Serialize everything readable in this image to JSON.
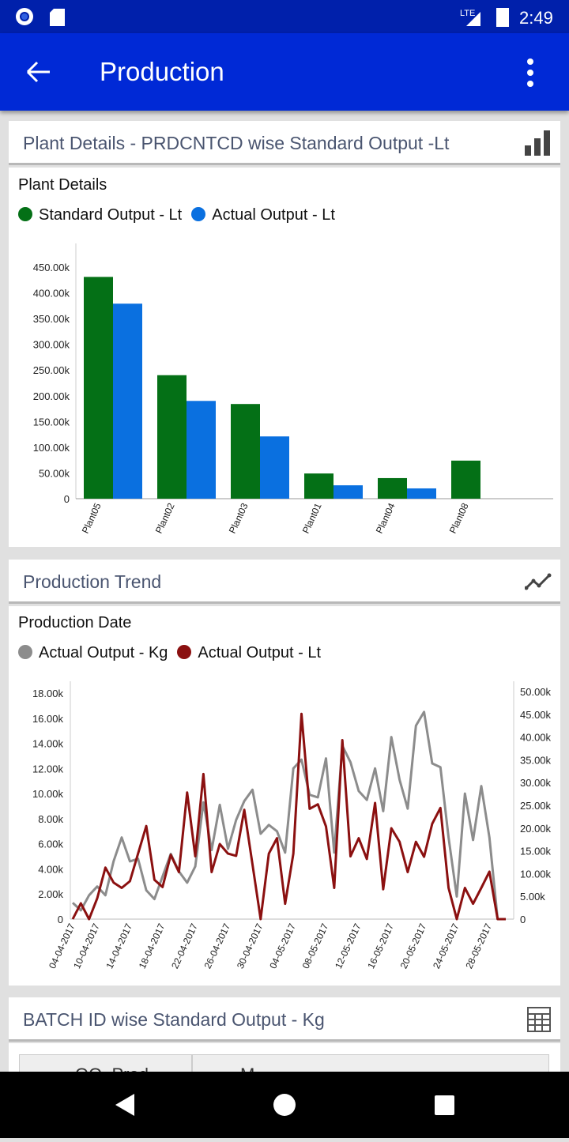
{
  "status_bar": {
    "time": "2:49",
    "network": "LTE"
  },
  "app_bar": {
    "title": "Production"
  },
  "cards": [
    {
      "header": "Plant Details - PRDCNTCD wise Standard Output -Lt",
      "icon": "bar-chart-icon"
    },
    {
      "header": "Production Trend",
      "icon": "line-chart-icon"
    },
    {
      "header": "BATCH ID wise Standard Output - Kg",
      "icon": "table-icon",
      "table_headers": [
        "OO_Prod",
        "M"
      ]
    }
  ],
  "chart_data": [
    {
      "type": "bar",
      "title": "Plant Details",
      "categories": [
        "Plant05",
        "Plant02",
        "Plant03",
        "Plant01",
        "Plant04",
        "Plant08"
      ],
      "series": [
        {
          "name": "Standard Output - Lt",
          "color": "#047016",
          "values": [
            431000,
            240000,
            184000,
            49000,
            40000,
            74000
          ]
        },
        {
          "name": "Actual Output - Lt",
          "color": "#0a70e0",
          "values": [
            379000,
            190000,
            121000,
            26000,
            20000,
            0
          ]
        }
      ],
      "ylim": [
        0,
        450000
      ],
      "y_ticks": [
        "0",
        "50.00k",
        "100.00k",
        "150.00k",
        "200.00k",
        "250.00k",
        "300.00k",
        "350.00k",
        "400.00k",
        "450.00k"
      ],
      "legend": "top-left",
      "grid": false
    },
    {
      "type": "line",
      "title": "Production Date",
      "x": [
        "04-04-2017",
        "06-04-2017",
        "08-04-2017",
        "10-04-2017",
        "11-04-2017",
        "12-04-2017",
        "13-04-2017",
        "14-04-2017",
        "15-04-2017",
        "16-04-2017",
        "17-04-2017",
        "18-04-2017",
        "19-04-2017",
        "20-04-2017",
        "21-04-2017",
        "22-04-2017",
        "23-04-2017",
        "24-04-2017",
        "25-04-2017",
        "26-04-2017",
        "27-04-2017",
        "28-04-2017",
        "29-04-2017",
        "30-04-2017",
        "01-05-2017",
        "02-05-2017",
        "03-05-2017",
        "04-05-2017",
        "05-05-2017",
        "06-05-2017",
        "07-05-2017",
        "08-05-2017",
        "09-05-2017",
        "10-05-2017",
        "11-05-2017",
        "12-05-2017",
        "13-05-2017",
        "14-05-2017",
        "15-05-2017",
        "16-05-2017",
        "17-05-2017",
        "18-05-2017",
        "19-05-2017",
        "20-05-2017",
        "21-05-2017",
        "22-05-2017",
        "23-05-2017",
        "24-05-2017",
        "25-05-2017",
        "26-05-2017",
        "27-05-2017",
        "28-05-2017",
        "29-05-2017",
        "30-05-2017"
      ],
      "x_tick_labels": [
        "04-04-2017",
        "10-04-2017",
        "14-04-2017",
        "18-04-2017",
        "22-04-2017",
        "26-04-2017",
        "30-04-2017",
        "04-05-2017",
        "08-05-2017",
        "12-05-2017",
        "16-05-2017",
        "20-05-2017",
        "24-05-2017",
        "28-05-2017"
      ],
      "series": [
        {
          "name": "Actual Output - Kg",
          "axis": "left",
          "color": "#8c8c8c",
          "values": [
            1300,
            700,
            1900,
            2600,
            1900,
            4600,
            6500,
            4600,
            4800,
            2300,
            1600,
            3400,
            5200,
            3800,
            2900,
            4200,
            9300,
            5500,
            9100,
            5600,
            7900,
            9400,
            10300,
            6800,
            7500,
            7000,
            5300,
            12000,
            12700,
            9900,
            9700,
            12800,
            5300,
            13800,
            12500,
            10200,
            9500,
            12000,
            8600,
            14500,
            11100,
            8800,
            15400,
            16500,
            12400,
            12100,
            6500,
            1800,
            10000,
            6300,
            10600,
            6500,
            0,
            0
          ]
        },
        {
          "name": "Actual Output - Lt",
          "axis": "right",
          "color": "#8b1010",
          "values": [
            0,
            3500,
            0,
            4600,
            11400,
            8100,
            6900,
            8400,
            14500,
            20600,
            8700,
            7100,
            14200,
            10400,
            28000,
            13900,
            32100,
            10400,
            16600,
            14500,
            14000,
            24200,
            12100,
            0,
            14500,
            17900,
            3400,
            14500,
            45400,
            24400,
            25400,
            20500,
            6900,
            39600,
            13900,
            17900,
            13300,
            25700,
            6600,
            20100,
            17100,
            10400,
            17100,
            13800,
            21100,
            24600,
            6900,
            0,
            6900,
            3400,
            6900,
            10500,
            0,
            0
          ]
        }
      ],
      "y_left": {
        "lim": [
          0,
          18000
        ],
        "ticks": [
          "0",
          "2.00k",
          "4.00k",
          "6.00k",
          "8.00k",
          "10.00k",
          "12.00k",
          "14.00k",
          "16.00k",
          "18.00k"
        ]
      },
      "y_right": {
        "lim": [
          0,
          50000
        ],
        "ticks": [
          "0",
          "5.00k",
          "10.00k",
          "15.00k",
          "20.00k",
          "25.00k",
          "30.00k",
          "35.00k",
          "40.00k",
          "45.00k",
          "50.00k"
        ]
      },
      "legend": "top-left",
      "grid": false
    }
  ]
}
